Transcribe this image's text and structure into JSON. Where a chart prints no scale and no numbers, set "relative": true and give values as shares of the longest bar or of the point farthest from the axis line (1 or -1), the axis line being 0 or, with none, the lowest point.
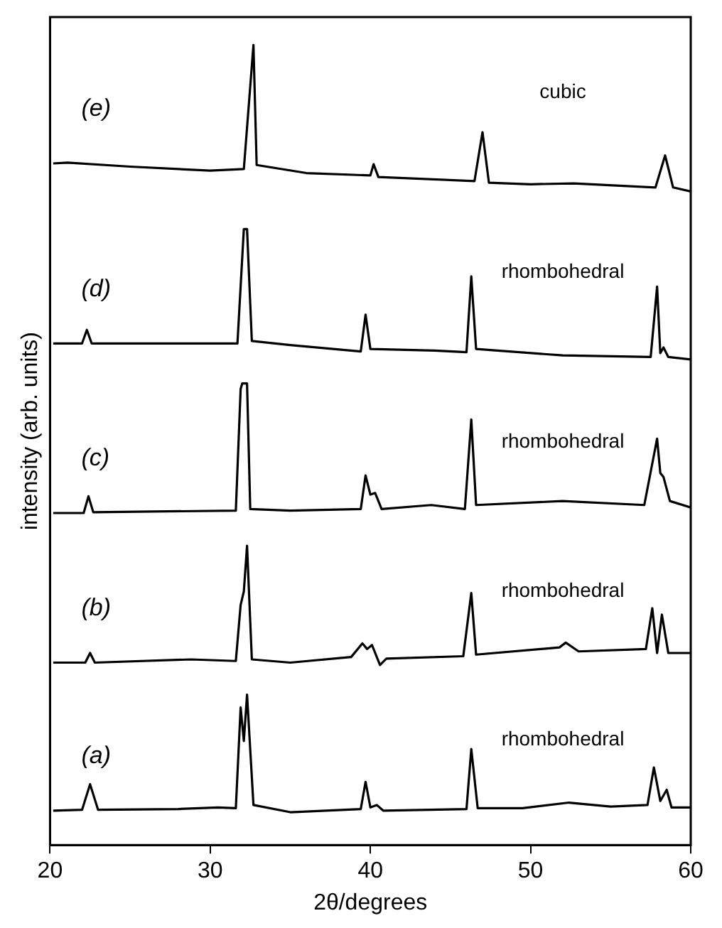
{
  "chart_data": {
    "type": "line",
    "xlabel": "2θ/degrees",
    "ylabel": "intensity (arb. units)",
    "relative": true,
    "xlim": [
      20,
      60
    ],
    "xticks": [
      20,
      30,
      40,
      50,
      60
    ],
    "grid": false,
    "legend": false,
    "tick_labels": "x",
    "marker": "none",
    "line_style": "solid",
    "series": [
      {
        "name": "(a)",
        "color": "#000000",
        "x": [
          20.2,
          22.0,
          22.5,
          23.0,
          28,
          30.5,
          31.6,
          31.9,
          32.1,
          32.3,
          32.7,
          35,
          39.4,
          39.7,
          40.0,
          40.4,
          40.8,
          46.0,
          46.3,
          46.7,
          49.5,
          52.4,
          55,
          57.3,
          57.7,
          58.1,
          58.5,
          58.8,
          60
        ],
        "values": [
          0.043,
          0.044,
          0.076,
          0.044,
          0.045,
          0.047,
          0.046,
          0.172,
          0.13,
          0.188,
          0.05,
          0.041,
          0.045,
          0.079,
          0.047,
          0.05,
          0.043,
          0.045,
          0.12,
          0.046,
          0.046,
          0.053,
          0.048,
          0.05,
          0.097,
          0.055,
          0.069,
          0.047,
          0.047
        ]
      },
      {
        "name": "(b)",
        "color": "#000000",
        "x": [
          20.2,
          22.2,
          22.5,
          22.8,
          28.8,
          31.6,
          31.9,
          32.1,
          32.3,
          32.6,
          35,
          38.8,
          39.5,
          39.8,
          40.1,
          40.6,
          41,
          45.8,
          46.3,
          46.6,
          51.8,
          52.2,
          53,
          57.2,
          57.6,
          57.9,
          58.2,
          58.6,
          60
        ],
        "values": [
          0.228,
          0.228,
          0.24,
          0.228,
          0.232,
          0.23,
          0.3,
          0.317,
          0.374,
          0.232,
          0.228,
          0.235,
          0.252,
          0.245,
          0.25,
          0.225,
          0.233,
          0.236,
          0.315,
          0.238,
          0.247,
          0.253,
          0.242,
          0.245,
          0.296,
          0.24,
          0.288,
          0.24,
          0.24
        ]
      },
      {
        "name": "(c)",
        "color": "#000000",
        "x": [
          20.2,
          22.1,
          22.4,
          22.7,
          31.6,
          31.9,
          32.0,
          32.3,
          32.5,
          35,
          39.4,
          39.7,
          40.0,
          40.3,
          40.7,
          43.8,
          45.9,
          46.3,
          46.6,
          52,
          57.1,
          57.9,
          58.1,
          58.3,
          58.7,
          60
        ],
        "values": [
          0.415,
          0.415,
          0.436,
          0.416,
          0.418,
          0.57,
          0.577,
          0.577,
          0.42,
          0.418,
          0.42,
          0.462,
          0.438,
          0.44,
          0.42,
          0.425,
          0.42,
          0.532,
          0.425,
          0.43,
          0.425,
          0.508,
          0.465,
          0.46,
          0.43,
          0.422
        ]
      },
      {
        "name": "(d)",
        "color": "#000000",
        "x": [
          20.2,
          22.0,
          22.3,
          22.6,
          31.7,
          32.1,
          32.3,
          32.6,
          35,
          39.4,
          39.7,
          40.0,
          44,
          46.0,
          46.3,
          46.6,
          52,
          57.5,
          57.9,
          58.1,
          58.3,
          58.6,
          60
        ],
        "values": [
          0.627,
          0.627,
          0.644,
          0.627,
          0.627,
          0.77,
          0.77,
          0.63,
          0.625,
          0.617,
          0.663,
          0.62,
          0.618,
          0.616,
          0.711,
          0.62,
          0.612,
          0.61,
          0.698,
          0.615,
          0.622,
          0.61,
          0.607
        ]
      },
      {
        "name": "(e)",
        "color": "#000000",
        "x": [
          20.2,
          21.1,
          25,
          30,
          32.1,
          32.7,
          32.9,
          36,
          40.0,
          40.2,
          40.5,
          46.5,
          47.0,
          47.4,
          50,
          52.7,
          57.8,
          58.4,
          58.9,
          60
        ],
        "values": [
          0.852,
          0.853,
          0.848,
          0.843,
          0.845,
          1,
          0.85,
          0.84,
          0.837,
          0.851,
          0.835,
          0.83,
          0.891,
          0.828,
          0.826,
          0.827,
          0.822,
          0.862,
          0.822,
          0.817
        ]
      }
    ],
    "annotations": [
      "cubic",
      "rhombohedral",
      "rhombohedral",
      "rhombohedral",
      "rhombohedral"
    ]
  }
}
